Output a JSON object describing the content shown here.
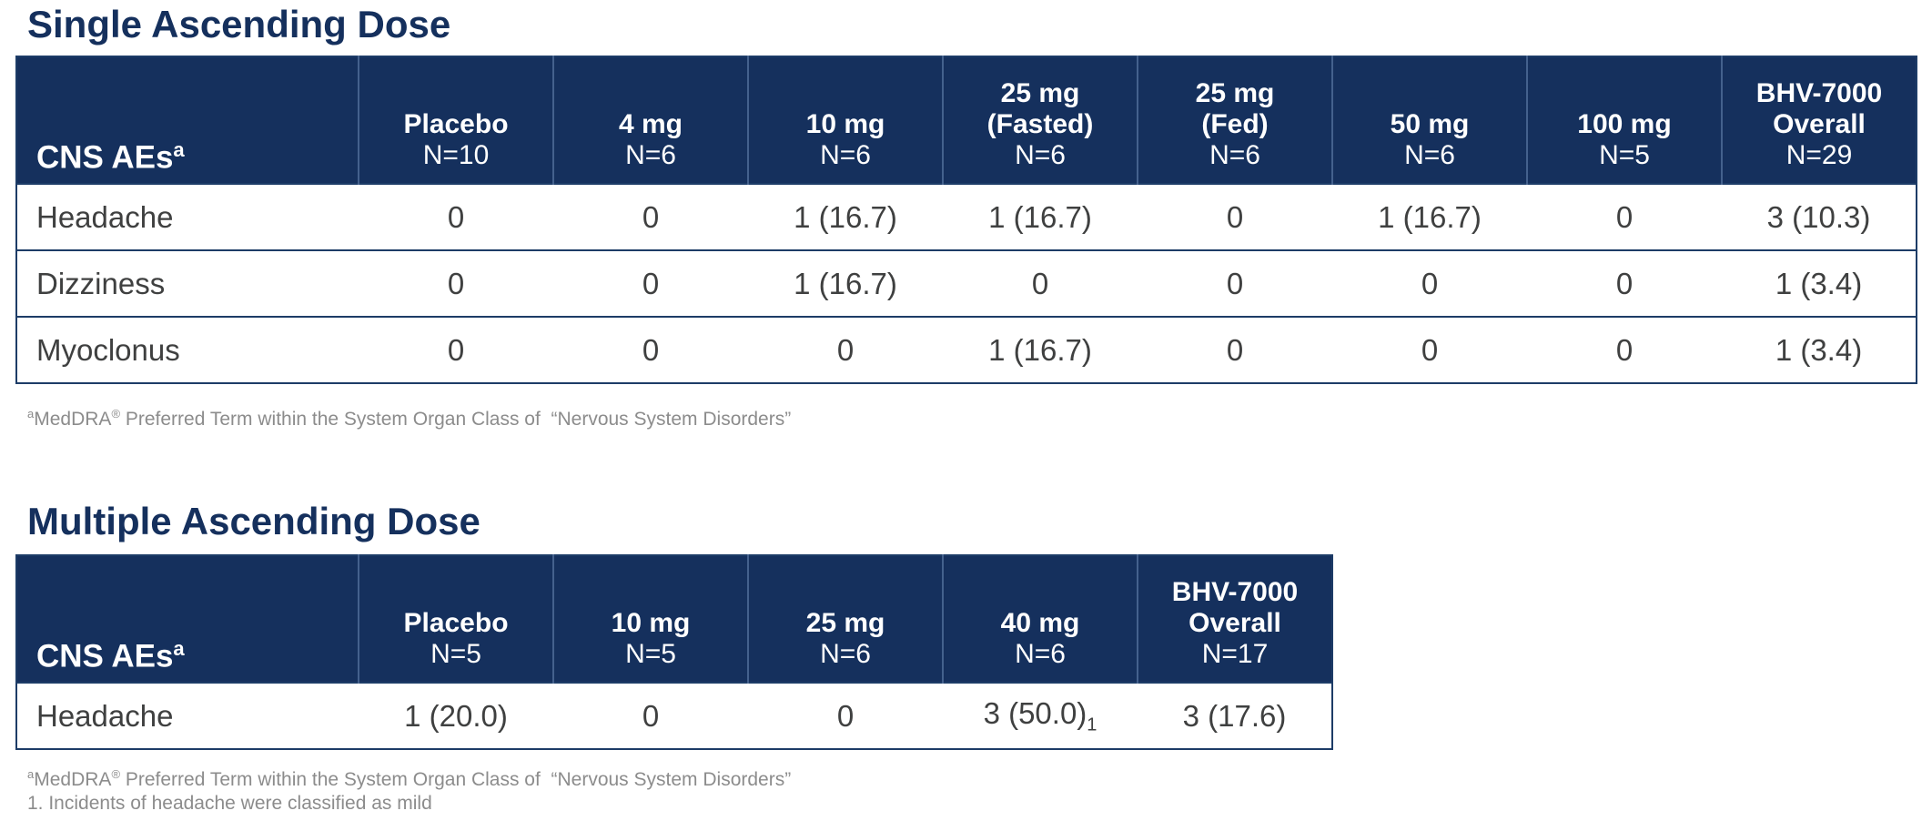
{
  "colors": {
    "header_navy": "#15305D",
    "header_separator": "#44618D",
    "row_border": "#1D3C67",
    "title_navy": "#15305D",
    "body_text": "#3F4040",
    "footnote_gray": "#8C8C8C"
  },
  "tables": [
    {
      "title": "Single Ascending Dose",
      "label_header": "CNS AEs",
      "label_sup": "a",
      "columns": [
        {
          "lines": [
            "Placebo"
          ],
          "n": "N=10"
        },
        {
          "lines": [
            "4 mg"
          ],
          "n": "N=6"
        },
        {
          "lines": [
            "10 mg"
          ],
          "n": "N=6"
        },
        {
          "lines": [
            "25 mg",
            "(Fasted)"
          ],
          "n": "N=6"
        },
        {
          "lines": [
            "25 mg",
            "(Fed)"
          ],
          "n": "N=6"
        },
        {
          "lines": [
            "50 mg"
          ],
          "n": "N=6"
        },
        {
          "lines": [
            "100 mg"
          ],
          "n": "N=5"
        },
        {
          "lines": [
            "BHV-7000",
            "Overall"
          ],
          "n": "N=29"
        }
      ],
      "rows": [
        {
          "label": "Headache",
          "values": [
            "0",
            "0",
            "1 (16.7)",
            "1 (16.7)",
            "0",
            "1 (16.7)",
            "0",
            "3 (10.3)"
          ]
        },
        {
          "label": "Dizziness",
          "values": [
            "0",
            "0",
            "1 (16.7)",
            "0",
            "0",
            "0",
            "0",
            "1 (3.4)"
          ]
        },
        {
          "label": "Myoclonus",
          "values": [
            "0",
            "0",
            "0",
            "1 (16.7)",
            "0",
            "0",
            "0",
            "1 (3.4)"
          ]
        }
      ],
      "footnotes": [
        [
          {
            "t": "a",
            "v": "sup"
          },
          {
            "t": "MedDRA"
          },
          {
            "t": "®",
            "v": "sup"
          },
          {
            "t": " Preferred Term within the System Organ Class of  “Nervous System Disorders”"
          }
        ]
      ]
    },
    {
      "title": "Multiple Ascending Dose",
      "label_header": "CNS AEs",
      "label_sup": "a",
      "columns": [
        {
          "lines": [
            "Placebo"
          ],
          "n": "N=5"
        },
        {
          "lines": [
            "10 mg"
          ],
          "n": "N=5"
        },
        {
          "lines": [
            "25 mg"
          ],
          "n": "N=6"
        },
        {
          "lines": [
            "40 mg"
          ],
          "n": "N=6"
        },
        {
          "lines": [
            "BHV-7000",
            "Overall"
          ],
          "n": "N=17"
        }
      ],
      "rows": [
        {
          "label": "Headache",
          "values": [
            "1 (20.0)",
            "0",
            "0",
            {
              "t": "3 (50.0)",
              "sub": "1"
            },
            "3 (17.6)"
          ]
        }
      ],
      "footnotes": [
        [
          {
            "t": "a",
            "v": "sup"
          },
          {
            "t": "MedDRA"
          },
          {
            "t": "®",
            "v": "sup"
          },
          {
            "t": " Preferred Term within the System Organ Class of  “Nervous System Disorders”"
          }
        ],
        [
          {
            "t": "1. Incidents of headache were classified as mild"
          }
        ]
      ]
    }
  ]
}
